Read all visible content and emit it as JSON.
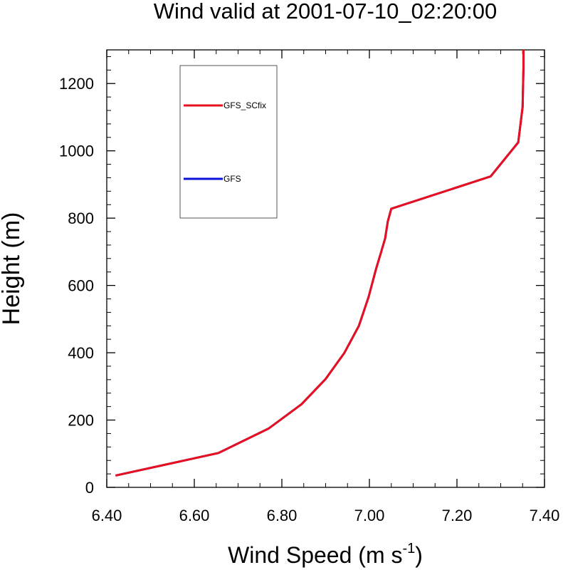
{
  "chart_data": {
    "type": "line",
    "title": "Wind valid at 2001-07-10_02:20:00",
    "xlabel": "Wind Speed (m s",
    "xlabel_sup": "-1",
    "xlabel_end": ")",
    "ylabel": "Height (m)",
    "xlim": [
      6.4,
      7.4
    ],
    "ylim": [
      0,
      1300
    ],
    "x_ticks": [
      "6.40",
      "6.60",
      "6.80",
      "7.00",
      "7.20",
      "7.40"
    ],
    "y_ticks": [
      "0",
      "200",
      "400",
      "600",
      "800",
      "1000",
      "1200"
    ],
    "grid": false,
    "legend_position": "upper-left",
    "series": [
      {
        "name": "GFS_SCfix",
        "color": "#e8101e",
        "x": [
          6.42,
          6.655,
          6.77,
          6.845,
          6.9,
          6.943,
          6.976,
          6.998,
          7.015,
          7.027,
          7.036,
          7.042,
          7.05,
          7.277,
          7.34,
          7.35,
          7.352,
          7.352
        ],
        "y": [
          35,
          102,
          175,
          247,
          322,
          400,
          480,
          565,
          648,
          700,
          740,
          790,
          828,
          924,
          1025,
          1130,
          1250,
          1300
        ]
      },
      {
        "name": "GFS",
        "color": "#0a10d8",
        "x": [
          6.42,
          6.655,
          6.77,
          6.845,
          6.9,
          6.943,
          6.976,
          6.998,
          7.015,
          7.027,
          7.036,
          7.042,
          7.05,
          7.277,
          7.34,
          7.35,
          7.352,
          7.352
        ],
        "y": [
          35,
          102,
          175,
          247,
          322,
          400,
          480,
          565,
          648,
          700,
          740,
          790,
          828,
          924,
          1025,
          1130,
          1250,
          1300
        ]
      }
    ]
  }
}
